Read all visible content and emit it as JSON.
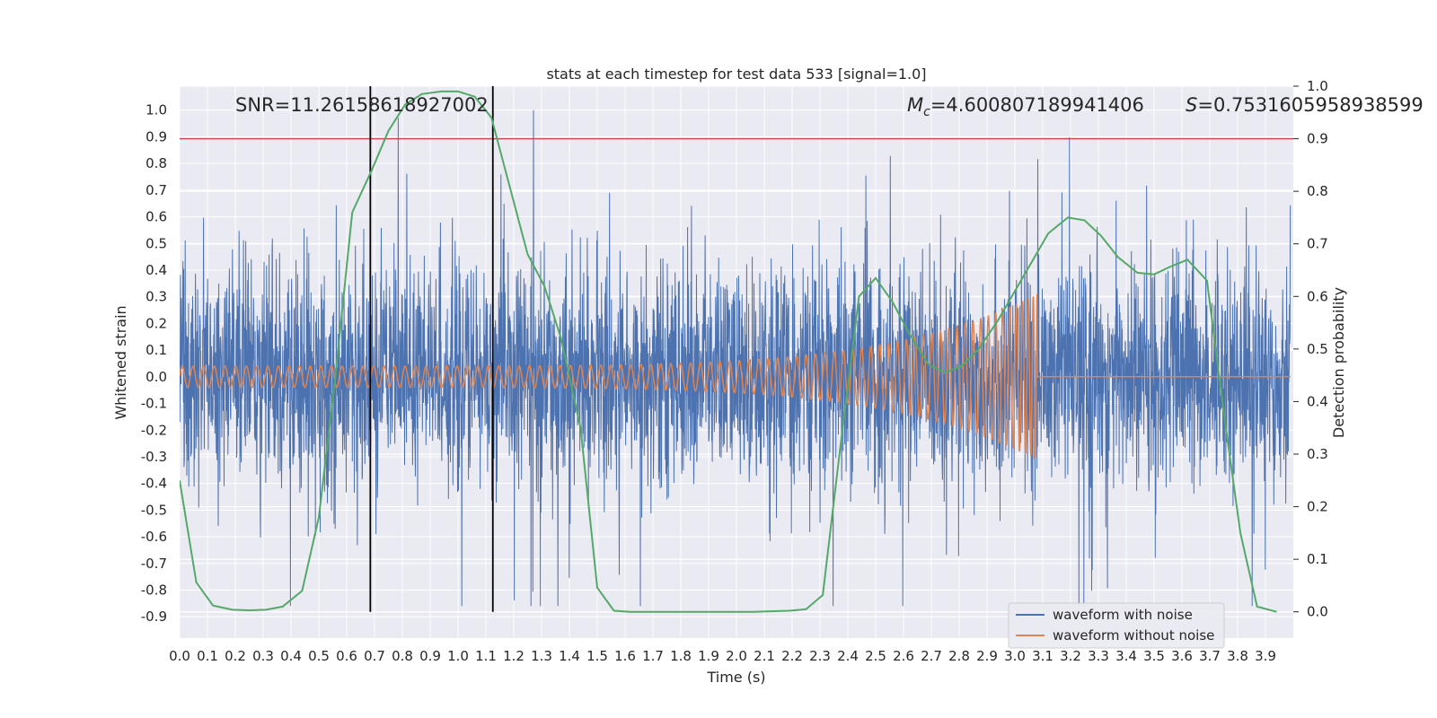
{
  "chart_data": {
    "type": "line",
    "title": "stats at each timestep for test data 533 [signal=1.0]",
    "xlabel": "Time (s)",
    "ylabel_left": "Whitened strain",
    "ylabel_right": "Detection probability",
    "xlim": [
      0.0,
      4.0
    ],
    "ylim_left": [
      -0.98,
      1.09
    ],
    "ylim_right": [
      -0.05,
      1.0
    ],
    "grid": true,
    "x_ticks": [
      "0.0",
      "0.1",
      "0.2",
      "0.3",
      "0.4",
      "0.5",
      "0.6",
      "0.7",
      "0.8",
      "0.9",
      "1.0",
      "1.1",
      "1.2",
      "1.3",
      "1.4",
      "1.5",
      "1.6",
      "1.7",
      "1.8",
      "1.9",
      "2.0",
      "2.1",
      "2.2",
      "2.3",
      "2.4",
      "2.5",
      "2.6",
      "2.7",
      "2.8",
      "2.9",
      "3.0",
      "3.1",
      "3.2",
      "3.3",
      "3.4",
      "3.5",
      "3.6",
      "3.7",
      "3.8",
      "3.9"
    ],
    "y_ticks_left": [
      "-0.9",
      "-0.8",
      "-0.7",
      "-0.6",
      "-0.5",
      "-0.4",
      "-0.3",
      "-0.2",
      "-0.1",
      "0.0",
      "0.1",
      "0.2",
      "0.3",
      "0.4",
      "0.5",
      "0.6",
      "0.7",
      "0.8",
      "0.9",
      "1.0"
    ],
    "y_ticks_right": [
      "0.0",
      "0.1",
      "0.2",
      "0.3",
      "0.4",
      "0.5",
      "0.6",
      "0.7",
      "0.8",
      "0.9",
      "1.0"
    ],
    "annotations": {
      "snr": "SNR=11.26158618927002",
      "mc_symbol": "M",
      "mc_sub": "c",
      "mc_value": "=4.600807189941406",
      "s_symbol": "S",
      "s_value": "=0.7531605958938599"
    },
    "threshold_right": 0.9,
    "vertical_markers_x": [
      0.685,
      1.125
    ],
    "legend": {
      "placement": "lower-right",
      "entries": [
        "waveform with noise",
        "waveform without noise"
      ]
    },
    "colors": {
      "noise": "#4c72b0",
      "clean": "#dd8452",
      "probability": "#55a868",
      "threshold": "#c44e52",
      "markers": "#000000",
      "plot_bg": "#eaeaf2",
      "grid": "#ffffff"
    },
    "series": [
      {
        "name": "waveform with noise",
        "axis": "left",
        "description_values": "noise spans approx -0.86 to 1.0 around 0; clipped at 1.0 near t=3.35"
      },
      {
        "name": "waveform without noise",
        "axis": "left",
        "chirp": {
          "t_start": 0.0,
          "t_merge": 3.08,
          "amp_start": 0.04,
          "amp_merge": 0.31,
          "f_start": 20,
          "f_merge": 250
        }
      },
      {
        "name": "Detection probability",
        "axis": "right",
        "x": [
          0.0,
          0.06,
          0.12,
          0.19,
          0.25,
          0.31,
          0.37,
          0.44,
          0.5,
          0.56,
          0.62,
          0.69,
          0.75,
          0.81,
          0.87,
          0.94,
          1.0,
          1.06,
          1.12,
          1.19,
          1.25,
          1.31,
          1.37,
          1.44,
          1.5,
          1.56,
          1.62,
          1.69,
          1.75,
          1.81,
          1.87,
          1.94,
          2.0,
          2.06,
          2.12,
          2.19,
          2.25,
          2.31,
          2.37,
          2.44,
          2.5,
          2.56,
          2.62,
          2.69,
          2.75,
          2.81,
          2.87,
          2.94,
          3.0,
          3.06,
          3.12,
          3.19,
          3.25,
          3.31,
          3.37,
          3.44,
          3.5,
          3.56,
          3.62,
          3.69,
          3.75,
          3.81,
          3.87,
          3.94
        ],
        "y": [
          0.25,
          0.056,
          0.012,
          0.004,
          0.003,
          0.004,
          0.01,
          0.04,
          0.18,
          0.45,
          0.76,
          0.84,
          0.915,
          0.965,
          0.985,
          0.99,
          0.99,
          0.98,
          0.94,
          0.8,
          0.68,
          0.62,
          0.52,
          0.35,
          0.046,
          0.002,
          0.0,
          0.0,
          0.0,
          0.0,
          0.0,
          0.0,
          0.0,
          0.0,
          0.001,
          0.002,
          0.005,
          0.032,
          0.3,
          0.6,
          0.635,
          0.59,
          0.53,
          0.47,
          0.455,
          0.468,
          0.5,
          0.555,
          0.61,
          0.665,
          0.72,
          0.75,
          0.745,
          0.715,
          0.675,
          0.645,
          0.642,
          0.657,
          0.67,
          0.63,
          0.38,
          0.15,
          0.01,
          0.0
        ]
      }
    ]
  }
}
